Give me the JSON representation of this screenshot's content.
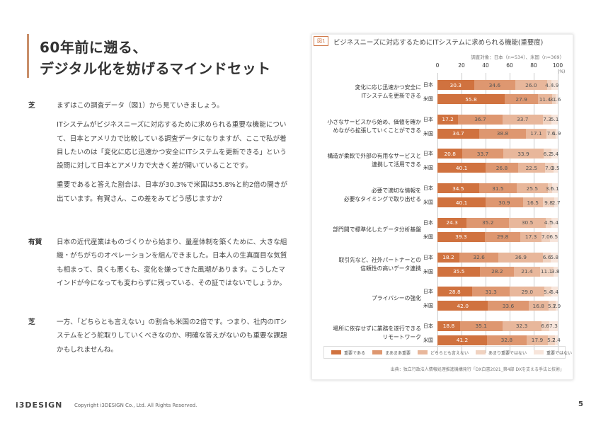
{
  "title": {
    "line1": "60年前に遡る、",
    "line2": "デジタル化を妨げるマインドセット"
  },
  "dialogue": [
    {
      "speaker": "芝",
      "paragraphs": [
        "まずはこの調査データ（図1）から見ていきましょう。",
        "ITシステムがビジネスニーズに対応するために求められる重要な機能について、日本とアメリカで比較している調査データになりますが、ここで私が着目したいのは「変化に応じ迅速かつ安全にITシステムを更新できる」という設問に対して日本とアメリカで大きく差が開いていることです。",
        "重要であると答えた割合は、日本が30.3%で米国は55.8%と約2倍の開きが出ています。有賀さん、この差をみてどう感じますか？"
      ]
    },
    {
      "speaker": "有賀",
      "paragraphs": [
        "日本の近代産業はものづくりから始まり、量産体制を築くために、大きな組織・がちがちのオペレーションを組んできました。日本人の生真面目な気質も相まって、良くも悪くも、変化を嫌ってきた風潮があります。こうしたマインドが今になっても変わらずに残っている、その証ではないでしょうか。"
      ]
    },
    {
      "speaker": "芝",
      "paragraphs": [
        "一方、「どちらとも言えない」の割合も米国の2倍です。つまり、社内のITシステムをどう舵取りしていくべきなのか、明確な答えがないのも重要な課題かもしれませんね。"
      ]
    }
  ],
  "figure": {
    "tag": "図1",
    "title": "ビジネスニーズに対応するためにITシステムに求められる機能(重要度)",
    "survey_note": "調査対象：日本（n=534）、米国（n=369）",
    "source": "出典：独立行政法人情報処理推進機構発行「DX白書2021_第4部 DXを支える手法と技術」"
  },
  "chart_data": {
    "type": "bar",
    "orientation": "horizontal",
    "stacked": true,
    "title": "ビジネスニーズに対応するためにITシステムに求められる機能(重要度)",
    "unit": "(%)",
    "xlim": [
      0,
      100
    ],
    "ticks": [
      0,
      20,
      40,
      60,
      80,
      100
    ],
    "series": [
      {
        "name": "重要である",
        "color": "#d0723f"
      },
      {
        "name": "まあまあ重要",
        "color": "#de9770"
      },
      {
        "name": "どちらとも言えない",
        "color": "#e8b79b"
      },
      {
        "name": "あまり重要ではない",
        "color": "#f0d2c0"
      },
      {
        "name": "重要ではない",
        "color": "#f7e5db"
      }
    ],
    "categories": [
      {
        "label": "変化に応じ迅速かつ安全に\nITシステムを更新できる",
        "rows": [
          {
            "country": "日本",
            "values": [
              30.3,
              34.6,
              26.0,
              4.1,
              4.9
            ]
          },
          {
            "country": "米国",
            "values": [
              55.8,
              27.9,
              11.4,
              3.3,
              1.6
            ]
          }
        ]
      },
      {
        "label": "小さなサービスから始め、価値を確か\nめながら拡張していくことができる",
        "rows": [
          {
            "country": "日本",
            "values": [
              17.2,
              36.7,
              33.7,
              7.3,
              5.1
            ]
          },
          {
            "country": "米国",
            "values": [
              34.7,
              38.8,
              17.1,
              7.6,
              1.9
            ]
          }
        ]
      },
      {
        "label": "構造が柔軟で外部の有用なサービスと\n連携して活用できる",
        "rows": [
          {
            "country": "日本",
            "values": [
              20.8,
              33.7,
              33.9,
              6.2,
              5.4
            ]
          },
          {
            "country": "米国",
            "values": [
              40.1,
              26.8,
              22.5,
              7.0,
              3.5
            ]
          }
        ]
      },
      {
        "label": "必要で適切な情報を\n必要なタイミングで取り出せる",
        "rows": [
          {
            "country": "日本",
            "values": [
              34.5,
              31.5,
              25.5,
              3.6,
              5.1
            ]
          },
          {
            "country": "米国",
            "values": [
              40.1,
              30.9,
              16.5,
              9.8,
              2.7
            ]
          }
        ]
      },
      {
        "label": "部門間で標準化したデータ分析基盤",
        "rows": [
          {
            "country": "日本",
            "values": [
              24.3,
              35.2,
              30.5,
              4.5,
              5.4
            ]
          },
          {
            "country": "米国",
            "values": [
              39.3,
              29.8,
              17.3,
              7.0,
              6.5
            ]
          }
        ]
      },
      {
        "label": "取引先など、社外パートナーとの\n信頼性の高いデータ連携",
        "rows": [
          {
            "country": "日本",
            "values": [
              18.2,
              32.6,
              36.9,
              6.6,
              5.8
            ]
          },
          {
            "country": "米国",
            "values": [
              35.5,
              28.2,
              21.4,
              11.1,
              3.8
            ]
          }
        ]
      },
      {
        "label": "プライバシーの強化",
        "rows": [
          {
            "country": "日本",
            "values": [
              28.8,
              31.3,
              29.0,
              5.4,
              5.4
            ]
          },
          {
            "country": "米国",
            "values": [
              42.0,
              33.6,
              16.8,
              5.7,
              1.9
            ]
          }
        ]
      },
      {
        "label": "場所に依存せずに業務を遂行できる\nリモートワーク",
        "rows": [
          {
            "country": "日本",
            "values": [
              18.8,
              35.1,
              32.3,
              6.6,
              7.3
            ]
          },
          {
            "country": "米国",
            "values": [
              41.2,
              32.8,
              17.9,
              5.7,
              2.4
            ]
          }
        ]
      }
    ]
  },
  "footer": {
    "logo": "i3DESIGN",
    "copyright": "Copyright i3DESIGN Co., Ltd. All Rights Reserved.",
    "page": "5"
  }
}
